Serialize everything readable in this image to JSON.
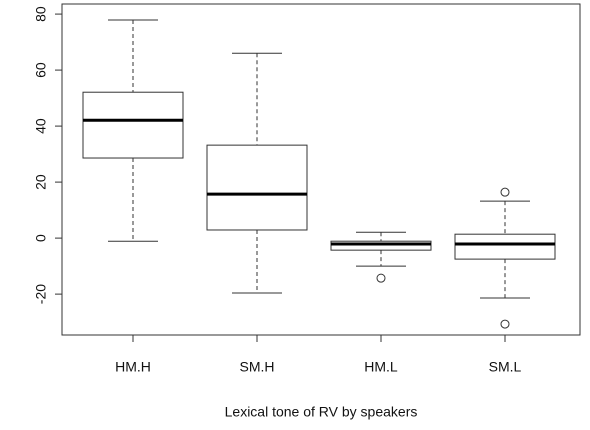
{
  "chart_data": {
    "type": "boxplot",
    "x_label": "Lexical tone of RV by speakers",
    "categories": [
      "HM.H",
      "SM.H",
      "HM.L",
      "SM.L"
    ],
    "boxes": [
      {
        "whislo": -1.1,
        "q1": 28.6,
        "med": 42.1,
        "q3": 52.1,
        "whishi": 77.9,
        "fliers": []
      },
      {
        "whislo": -19.6,
        "q1": 2.9,
        "med": 15.7,
        "q3": 33.2,
        "whishi": 66,
        "fliers": []
      },
      {
        "whislo": -10,
        "q1": -4.3,
        "med": -2.1,
        "q3": -1.1,
        "whishi": 2.1,
        "fliers": [
          -14.3
        ]
      },
      {
        "whislo": -21.4,
        "q1": -7.5,
        "med": -2.1,
        "q3": 1.4,
        "whishi": 13.2,
        "fliers": [
          16.4,
          -30.7
        ]
      }
    ],
    "ylim": [
      -34.6,
      83.6
    ],
    "yticks": [
      -20,
      0,
      20,
      40,
      60,
      80
    ]
  }
}
